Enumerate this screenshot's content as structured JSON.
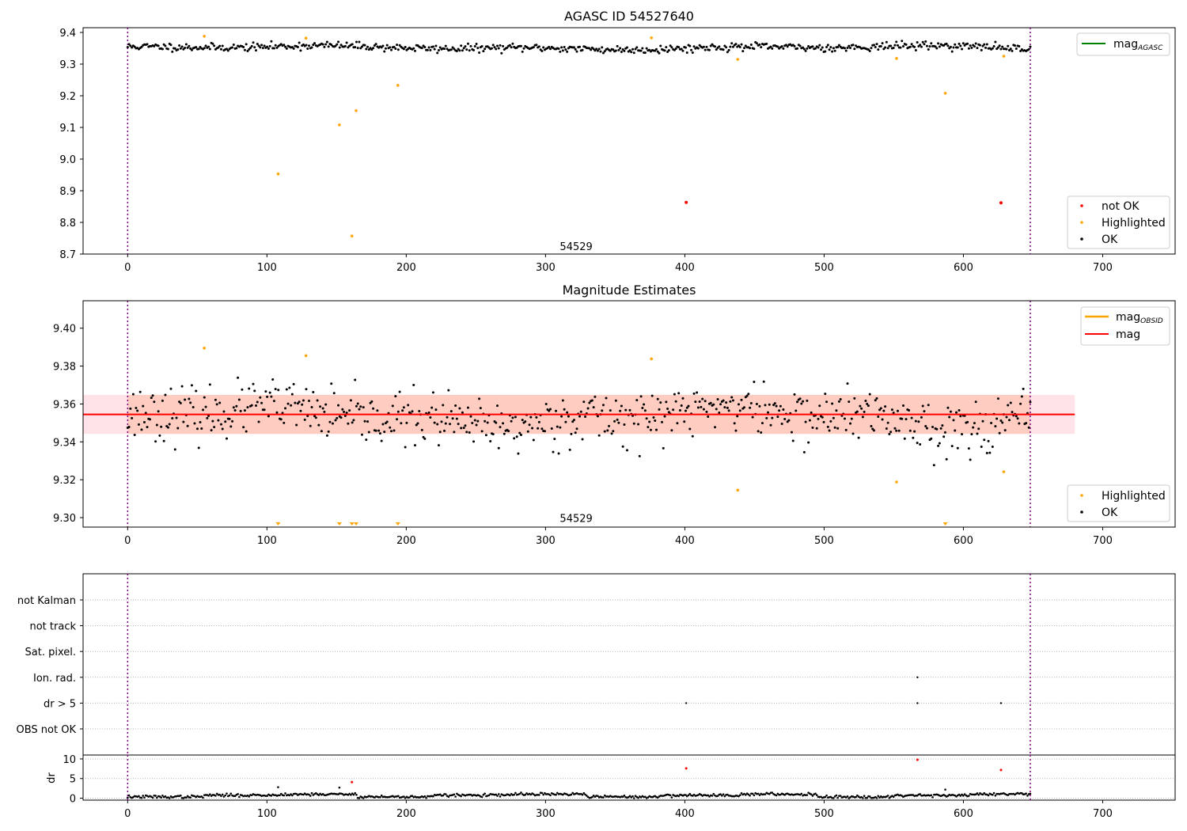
{
  "colors": {
    "ok": "#000000",
    "highlighted": "#ffa500",
    "not_ok": "#ff0000",
    "mag_agasc_line": "#008000",
    "mag_obsid_line": "#ffa500",
    "mag_line": "#ff0000",
    "obsid_boundary": "#800080",
    "band_outer": "#ffc0cb",
    "band_inner": "#ffa07a"
  },
  "chart_data": [
    {
      "id": "agasc",
      "type": "scatter",
      "title": "AGASC ID 54527640",
      "xlim": [
        -32,
        752
      ],
      "ylim": [
        8.7,
        9.415
      ],
      "xticks": [
        0,
        100,
        200,
        300,
        400,
        500,
        600,
        700
      ],
      "yticks": [
        8.7,
        8.8,
        8.9,
        9.0,
        9.1,
        9.2,
        9.3,
        9.4
      ],
      "ytick_decimals": 1,
      "obsid_label": "54529",
      "obsid_label_pos": [
        322,
        8.705
      ],
      "obsid_boundaries": [
        0,
        648
      ],
      "ok_series": {
        "n": 648,
        "x_end": 648,
        "base": 9.352,
        "amp": 0.011,
        "seed": 11
      },
      "highlighted": [
        {
          "x": 55,
          "y": 9.388
        },
        {
          "x": 108,
          "y": 8.953
        },
        {
          "x": 128,
          "y": 9.382
        },
        {
          "x": 152,
          "y": 9.108
        },
        {
          "x": 161,
          "y": 8.757
        },
        {
          "x": 164,
          "y": 9.153
        },
        {
          "x": 194,
          "y": 9.233
        },
        {
          "x": 376,
          "y": 9.383
        },
        {
          "x": 438,
          "y": 9.315
        },
        {
          "x": 552,
          "y": 9.318
        },
        {
          "x": 587,
          "y": 9.208
        },
        {
          "x": 629,
          "y": 9.325
        }
      ],
      "not_ok": [
        {
          "x": 401,
          "y": 8.863
        },
        {
          "x": 627,
          "y": 8.862
        }
      ],
      "legend_lines": [
        {
          "label": "mag",
          "sub": "AGASC",
          "color": "#008000"
        }
      ],
      "legend_points": [
        {
          "label": "not OK",
          "color": "#ff0000"
        },
        {
          "label": "Highlighted",
          "color": "#ffa500"
        },
        {
          "label": "OK",
          "color": "#000000"
        }
      ]
    },
    {
      "id": "estimates",
      "type": "scatter",
      "title": "Magnitude Estimates",
      "xlim": [
        -32,
        752
      ],
      "ylim": [
        9.295,
        9.4145
      ],
      "xticks": [
        0,
        100,
        200,
        300,
        400,
        500,
        600,
        700
      ],
      "yticks": [
        9.3,
        9.32,
        9.34,
        9.36,
        9.38,
        9.4
      ],
      "ytick_decimals": 2,
      "obsid_label": "54529",
      "obsid_label_pos": [
        322,
        9.2965
      ],
      "obsid_boundaries": [
        0,
        648
      ],
      "mag": 9.3545,
      "band_outer": {
        "x": [
          -32,
          680
        ],
        "y": [
          9.3442,
          9.3648
        ]
      },
      "band_inner": {
        "x": [
          0,
          648
        ],
        "y": [
          9.3442,
          9.3648
        ]
      },
      "ok_series": {
        "n": 648,
        "x_end": 648,
        "base": 9.353,
        "amp": 0.011,
        "seed": 23
      },
      "highlighted": [
        {
          "x": 55,
          "y": 9.3895
        },
        {
          "x": 128,
          "y": 9.3855
        },
        {
          "x": 376,
          "y": 9.3838
        },
        {
          "x": 438,
          "y": 9.3145
        },
        {
          "x": 552,
          "y": 9.3188
        },
        {
          "x": 629,
          "y": 9.3242
        }
      ],
      "below_range_markers": [
        108,
        152,
        161,
        164,
        194,
        587
      ],
      "legend_lines": [
        {
          "label": "mag",
          "sub": "OBSID",
          "color": "#ffa500"
        },
        {
          "label": "mag",
          "sub": "",
          "color": "#ff0000"
        }
      ],
      "legend_points": [
        {
          "label": "Highlighted",
          "color": "#ffa500"
        },
        {
          "label": "OK",
          "color": "#000000"
        }
      ]
    },
    {
      "id": "flags",
      "type": "scatter",
      "title": "",
      "xlim": [
        -32,
        752
      ],
      "categories": [
        "not Kalman",
        "not track",
        "Sat. pixel.",
        "Ion. rad.",
        "dr > 5",
        "OBS not OK"
      ],
      "obsid_boundaries": [
        0,
        648
      ],
      "points": [
        {
          "x": 567,
          "category": "Ion. rad."
        },
        {
          "x": 401,
          "category": "dr > 5"
        },
        {
          "x": 567,
          "category": "dr > 5"
        },
        {
          "x": 627,
          "category": "dr > 5"
        }
      ]
    },
    {
      "id": "dr",
      "type": "scatter",
      "title": "",
      "ylabel": "dr",
      "xlim": [
        -32,
        752
      ],
      "ylim": [
        -0.5,
        11
      ],
      "xticks": [
        0,
        100,
        200,
        300,
        400,
        500,
        600,
        700
      ],
      "yticks": [
        0,
        5,
        10
      ],
      "obsid_boundaries": [
        0,
        648
      ],
      "ok_series": {
        "n": 648,
        "x_end": 648,
        "seed": 37
      },
      "highlighted_points": [
        {
          "x": 108,
          "y": 2.8
        },
        {
          "x": 152,
          "y": 2.7
        },
        {
          "x": 587,
          "y": 2.2
        }
      ],
      "not_ok_points": [
        {
          "x": 161,
          "y": 4.1
        },
        {
          "x": 401,
          "y": 7.6
        },
        {
          "x": 567,
          "y": 9.8
        },
        {
          "x": 627,
          "y": 7.2
        }
      ]
    }
  ]
}
